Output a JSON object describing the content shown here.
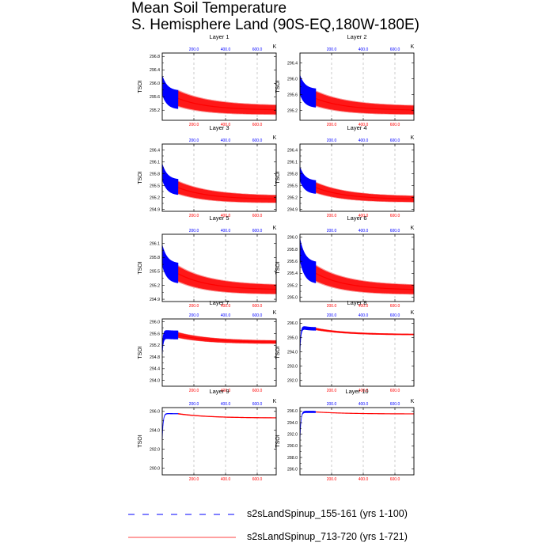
{
  "figure": {
    "title_line1": "Mean Soil Temperature",
    "title_line2": "S. Hemisphere Land (90S-EQ,180W-180E)"
  },
  "colors": {
    "run1": "#0000ff",
    "run2": "#ff0000",
    "run2_band": "#f6a0a0",
    "run1_top_axis": "#0000ff",
    "run2_bottom_axis": "#ff0000"
  },
  "legend": [
    {
      "label": "s2sLandSpinup_155-161 (yrs 1-100)",
      "style": "dashed",
      "color": "#0000ff"
    },
    {
      "label": "s2sLandSpinup_713-720 (yrs 1-721)",
      "style": "solid",
      "color": "#ff0000"
    }
  ],
  "chart_data": [
    {
      "type": "line",
      "title": "Layer 1",
      "ylabel": "TSOI",
      "corner_label": "K",
      "x_ticks": [
        "200.0",
        "400.0",
        "600.0"
      ],
      "xlim": [
        0,
        720
      ],
      "y_ticks": [
        295.2,
        295.6,
        296.0,
        296.4,
        296.8
      ],
      "ylim": [
        294.9,
        296.9
      ],
      "series": [
        {
          "name": "s2sLandSpinup_155-161",
          "x_end": 100,
          "start": 295.95,
          "end": 295.5,
          "amp": 0.28
        },
        {
          "name": "s2sLandSpinup_713-720",
          "x_end": 720,
          "start": 295.55,
          "end": 295.2,
          "amp": 0.25
        }
      ]
    },
    {
      "type": "line",
      "title": "Layer 2",
      "ylabel": "TSOI",
      "corner_label": "K",
      "x_ticks": [
        "200.0",
        "400.0",
        "600.0"
      ],
      "xlim": [
        0,
        720
      ],
      "y_ticks": [
        295.2,
        295.6,
        296.0,
        296.4
      ],
      "ylim": [
        294.95,
        296.65
      ],
      "series": [
        {
          "name": "s2sLandSpinup_155-161",
          "x_end": 100,
          "start": 295.85,
          "end": 295.5,
          "amp": 0.24
        },
        {
          "name": "s2sLandSpinup_713-720",
          "x_end": 720,
          "start": 295.5,
          "end": 295.2,
          "amp": 0.2
        }
      ]
    },
    {
      "type": "line",
      "title": "Layer 3",
      "ylabel": "TSOI",
      "corner_label": "K",
      "x_ticks": [
        "200.0",
        "400.0",
        "600.0"
      ],
      "xlim": [
        0,
        720
      ],
      "y_ticks": [
        294.9,
        295.2,
        295.5,
        295.8,
        296.1,
        296.4
      ],
      "ylim": [
        294.85,
        296.55
      ],
      "series": [
        {
          "name": "s2sLandSpinup_155-161",
          "x_end": 100,
          "start": 295.85,
          "end": 295.45,
          "amp": 0.2
        },
        {
          "name": "s2sLandSpinup_713-720",
          "x_end": 720,
          "start": 295.45,
          "end": 295.15,
          "amp": 0.17
        }
      ]
    },
    {
      "type": "line",
      "title": "Layer 4",
      "ylabel": "TSOI",
      "corner_label": "K",
      "x_ticks": [
        "200.0",
        "400.0",
        "600.0"
      ],
      "xlim": [
        0,
        720
      ],
      "y_ticks": [
        294.9,
        295.2,
        295.5,
        295.8,
        296.1,
        296.4
      ],
      "ylim": [
        294.85,
        296.55
      ],
      "series": [
        {
          "name": "s2sLandSpinup_155-161",
          "x_end": 100,
          "start": 295.8,
          "end": 295.45,
          "amp": 0.17
        },
        {
          "name": "s2sLandSpinup_713-720",
          "x_end": 720,
          "start": 295.45,
          "end": 295.15,
          "amp": 0.14
        }
      ]
    },
    {
      "type": "line",
      "title": "Layer 5",
      "ylabel": "TSOI",
      "corner_label": "K",
      "x_ticks": [
        "200.0",
        "400.0",
        "600.0"
      ],
      "xlim": [
        0,
        720
      ],
      "y_ticks": [
        294.9,
        295.2,
        295.5,
        295.8,
        296.1
      ],
      "ylim": [
        294.85,
        296.3
      ],
      "series": [
        {
          "name": "s2sLandSpinup_155-161",
          "x_end": 100,
          "start": 295.85,
          "end": 295.45,
          "amp": 0.22
        },
        {
          "name": "s2sLandSpinup_713-720",
          "x_end": 720,
          "start": 295.45,
          "end": 295.1,
          "amp": 0.18
        }
      ]
    },
    {
      "type": "line",
      "title": "Layer 6",
      "ylabel": "TSOI",
      "corner_label": "K",
      "x_ticks": [
        "200.0",
        "400.0",
        "600.0"
      ],
      "xlim": [
        0,
        720
      ],
      "y_ticks": [
        295.0,
        295.2,
        295.4,
        295.6,
        295.8,
        296.0
      ],
      "ylim": [
        294.93,
        296.05
      ],
      "series": [
        {
          "name": "s2sLandSpinup_155-161",
          "x_end": 100,
          "start": 295.8,
          "end": 295.4,
          "amp": 0.18
        },
        {
          "name": "s2sLandSpinup_713-720",
          "x_end": 720,
          "start": 295.4,
          "end": 295.12,
          "amp": 0.14
        }
      ]
    },
    {
      "type": "line",
      "title": "Layer 7",
      "ylabel": "TSOI",
      "corner_label": "K",
      "x_ticks": [
        "200.0",
        "400.0",
        "600.0"
      ],
      "xlim": [
        0,
        720
      ],
      "y_ticks": [
        294.0,
        294.4,
        294.8,
        295.2,
        295.6,
        296.0
      ],
      "ylim": [
        293.8,
        296.1
      ],
      "series": [
        {
          "name": "s2sLandSpinup_155-161",
          "x_end": 100,
          "start": 295.6,
          "end": 295.55,
          "amp": 0.15,
          "rise_from": 295.0
        },
        {
          "name": "s2sLandSpinup_713-720",
          "x_end": 720,
          "start": 295.55,
          "end": 295.3,
          "amp": 0.1
        }
      ]
    },
    {
      "type": "line",
      "title": "Layer 8",
      "ylabel": "TSOI",
      "corner_label": "K",
      "x_ticks": [
        "200.0",
        "400.0",
        "600.0"
      ],
      "xlim": [
        0,
        720
      ],
      "y_ticks": [
        292.0,
        293.0,
        294.0,
        295.0,
        296.0
      ],
      "ylim": [
        291.6,
        296.3
      ],
      "series": [
        {
          "name": "s2sLandSpinup_155-161",
          "x_end": 100,
          "start": 295.8,
          "end": 295.6,
          "amp": 0.12,
          "rise_from": 294.0
        },
        {
          "name": "s2sLandSpinup_713-720",
          "x_end": 720,
          "start": 295.6,
          "end": 295.2,
          "amp": 0.08
        }
      ]
    },
    {
      "type": "line",
      "title": "Layer 9",
      "ylabel": "TSOI",
      "corner_label": "K",
      "x_ticks": [
        "200.0",
        "400.0",
        "600.0"
      ],
      "xlim": [
        0,
        720
      ],
      "y_ticks": [
        290.0,
        292.0,
        294.0,
        296.0
      ],
      "ylim": [
        289.3,
        296.4
      ],
      "series": [
        {
          "name": "s2sLandSpinup_155-161",
          "x_end": 100,
          "start": 295.8,
          "end": 295.75,
          "amp": 0.05,
          "rise_from": 293.0
        },
        {
          "name": "s2sLandSpinup_713-720",
          "x_end": 720,
          "start": 295.75,
          "end": 295.3,
          "amp": 0.03
        }
      ]
    },
    {
      "type": "line",
      "title": "Layer 10",
      "ylabel": "TSOI",
      "corner_label": "K",
      "x_ticks": [
        "200.0",
        "400.0",
        "600.0"
      ],
      "xlim": [
        0,
        720
      ],
      "y_ticks": [
        286.0,
        288.0,
        290.0,
        292.0,
        294.0,
        296.0
      ],
      "ylim": [
        285.0,
        296.6
      ],
      "series": [
        {
          "name": "s2sLandSpinup_155-161",
          "x_end": 100,
          "start": 295.9,
          "end": 295.85,
          "amp": 0.03,
          "rise_from": 291.0
        },
        {
          "name": "s2sLandSpinup_713-720",
          "x_end": 720,
          "start": 295.85,
          "end": 295.5,
          "amp": 0.02
        }
      ]
    }
  ]
}
